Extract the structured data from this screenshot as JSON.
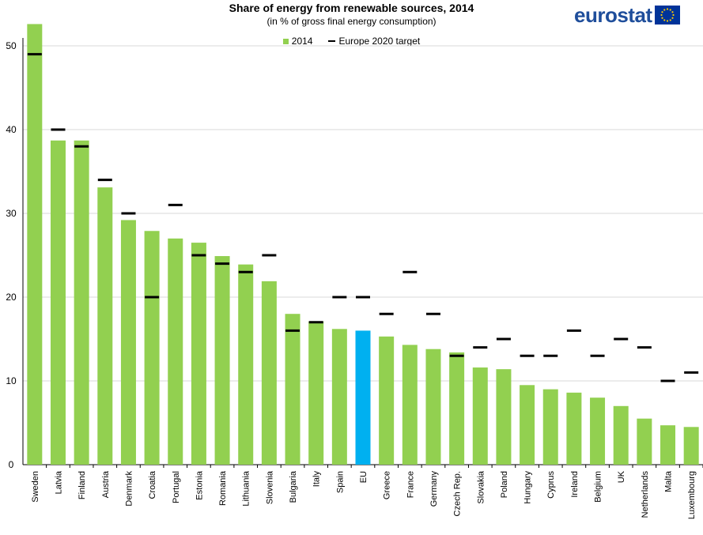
{
  "chart_data": {
    "type": "bar",
    "title": "Share of energy from renewable sources, 2014",
    "subtitle": "(in % of gross final energy consumption)",
    "ylim": [
      0,
      55
    ],
    "yticks": [
      0,
      10,
      20,
      30,
      40,
      50
    ],
    "grid": true,
    "legend_position": "top-center",
    "categories": [
      "Sweden",
      "Latvia",
      "Finland",
      "Austria",
      "Denmark",
      "Croatia",
      "Portugal",
      "Estonia",
      "Romania",
      "Lithuania",
      "Slovenia",
      "Bulgaria",
      "Italy",
      "Spain",
      "EU",
      "Greece",
      "France",
      "Germany",
      "Czech Rep.",
      "Slovakia",
      "Poland",
      "Hungary",
      "Cyprus",
      "Ireland",
      "Belgium",
      "UK",
      "Netherlands",
      "Malta",
      "Luxembourg"
    ],
    "series": [
      {
        "name": "2014",
        "kind": "bar",
        "color": "#92d050",
        "highlight": {
          "category": "EU",
          "color": "#00b0f0"
        },
        "values": [
          52.6,
          38.7,
          38.7,
          33.1,
          29.2,
          27.9,
          27.0,
          26.5,
          24.9,
          23.9,
          21.9,
          18.0,
          17.1,
          16.2,
          16.0,
          15.3,
          14.3,
          13.8,
          13.4,
          11.6,
          11.4,
          9.5,
          9.0,
          8.6,
          8.0,
          7.0,
          5.5,
          4.7,
          4.5
        ]
      },
      {
        "name": "Europe 2020 target",
        "kind": "marker",
        "color": "#000000",
        "values": [
          49,
          40,
          38,
          34,
          30,
          20,
          31,
          25,
          24,
          23,
          25,
          16,
          17,
          20,
          20,
          18,
          23,
          18,
          13,
          14,
          15,
          13,
          13,
          16,
          13,
          15,
          14,
          10,
          11
        ]
      }
    ]
  },
  "logo": {
    "text": "eurostat",
    "flag_color": "#003399",
    "star_color": "#ffcc00"
  }
}
